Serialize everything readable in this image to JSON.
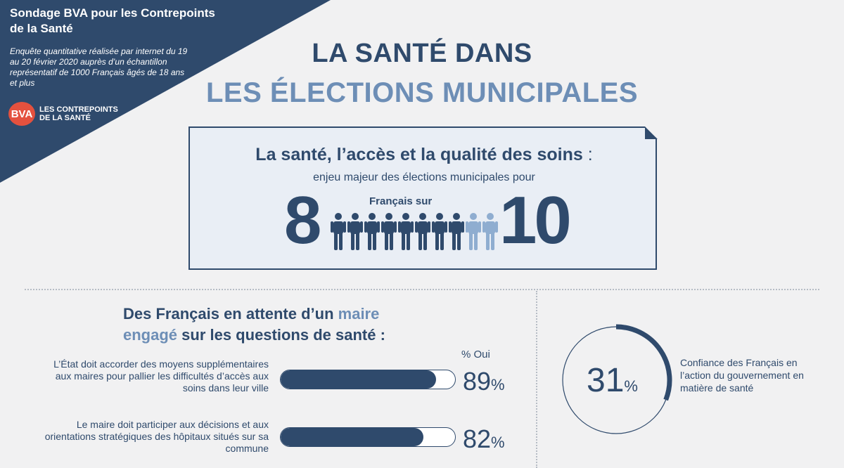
{
  "corner": {
    "title": "Sondage BVA pour les Contrepoints de la Santé",
    "subtitle": "Enquête quantitative réalisée par internet du 19 au 20 février 2020 auprès d’un échantillon représentatif de 1000 Français âgés de 18 ans et plus",
    "logo_badge": "BVA",
    "logo_text": "LES CONTREPOINTS DE LA SANTÉ"
  },
  "title": {
    "line1": "LA SANTÉ DANS",
    "line2": "LES ÉLECTIONS MUNICIPALES"
  },
  "highlight": {
    "headline": "La santé, l’accès et la qualité des soins",
    "headline_colon": " :",
    "sub": "enjeu majeur des élections municipales pour",
    "numerator": "8",
    "francais_sur": "Français sur",
    "denominator": "10",
    "people_total": 10,
    "people_highlighted": 8
  },
  "engaged": {
    "title_part1": "Des Français en attente d’un ",
    "title_hl1": "maire",
    "title_hl2": "engagé",
    "title_part2": " sur les questions de santé :",
    "pct_header": "% Oui",
    "items": [
      {
        "text": "L’État doit accorder des moyens supplémentaires aux maires pour pallier les difficultés d’accès aux soins dans leur ville",
        "value": 89,
        "value_label": "89",
        "unit": "%"
      },
      {
        "text": "Le maire doit participer aux décisions et aux orientations stratégiques des hôpitaux situés sur sa commune",
        "value": 82,
        "value_label": "82",
        "unit": "%"
      }
    ]
  },
  "confidence": {
    "value": 31,
    "value_label": "31",
    "unit": "%",
    "text": "Confiance des Français en l’action du gouvernement en matière de santé"
  },
  "colors": {
    "navy": "#2f4a6c",
    "light_blue": "#6d8eb6",
    "person_light": "#8fadd0",
    "background": "#f1f1f2",
    "bva_red": "#e4513e"
  }
}
